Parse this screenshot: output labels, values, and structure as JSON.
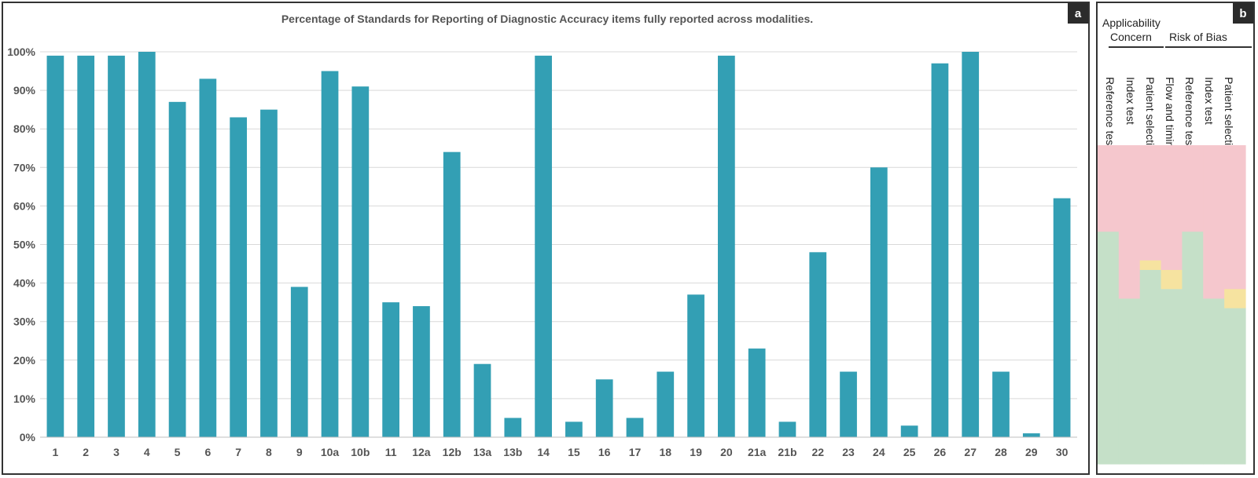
{
  "panel_a": {
    "label": "a",
    "chart_data": {
      "type": "bar",
      "title": "Percentage of Standards for Reporting of Diagnostic Accuracy items fully reported across modalities.",
      "xlabel": "",
      "ylabel": "",
      "categories": [
        "1",
        "2",
        "3",
        "4",
        "5",
        "6",
        "7",
        "8",
        "9",
        "10a",
        "10b",
        "11",
        "12a",
        "12b",
        "13a",
        "13b",
        "14",
        "15",
        "16",
        "17",
        "18",
        "19",
        "20",
        "21a",
        "21b",
        "22",
        "23",
        "24",
        "25",
        "26",
        "27",
        "28",
        "29",
        "30"
      ],
      "values": [
        99,
        99,
        99,
        100,
        87,
        93,
        83,
        85,
        39,
        95,
        91,
        35,
        34,
        74,
        19,
        5,
        99,
        4,
        15,
        5,
        17,
        37,
        99,
        23,
        4,
        48,
        17,
        70,
        3,
        97,
        100,
        17,
        1,
        62
      ],
      "ylim": [
        0,
        100
      ],
      "yticks": [
        "0%",
        "10%",
        "20%",
        "30%",
        "40%",
        "50%",
        "60%",
        "70%",
        "80%",
        "90%",
        "100%"
      ],
      "grid": true,
      "bar_color": "#339fb4"
    }
  },
  "panel_b": {
    "label": "b",
    "header_applicability": "Applicability",
    "header_concern": "Concern",
    "header_risk_of_bias": "Risk of Bias",
    "columns": [
      "Reference test",
      "Index test",
      "Patient selection",
      "Flow and timing",
      "Reference test",
      "Index test",
      "Patient selection"
    ],
    "chart_data": {
      "type": "bar",
      "stacked": true,
      "categories": [
        "Reference test",
        "Index test",
        "Patient selection",
        "Flow and timing",
        "Reference test",
        "Index test",
        "Patient selection"
      ],
      "series": [
        {
          "color": "#c5e0c8",
          "values": [
            73,
            52,
            61,
            55,
            73,
            52,
            49
          ]
        },
        {
          "color": "#f6e3a0",
          "values": [
            0,
            0,
            3,
            6,
            0,
            0,
            6
          ]
        },
        {
          "color": "#f5c7cd",
          "values": [
            27,
            48,
            36,
            39,
            27,
            48,
            45
          ]
        }
      ],
      "ylim": [
        0,
        100
      ]
    }
  }
}
